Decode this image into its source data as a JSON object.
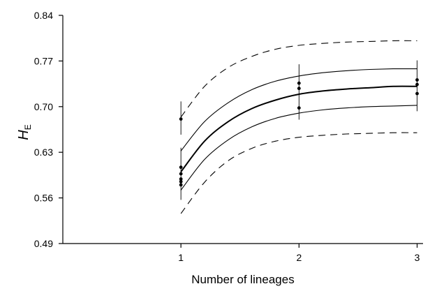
{
  "chart_data": {
    "type": "scatter",
    "title": "",
    "xlabel": "Number of lineages",
    "ylabel_main": "H",
    "ylabel_sub": "E",
    "xlim": [
      0,
      3.05
    ],
    "ylim": [
      0.49,
      0.84
    ],
    "x_ticks": [
      1,
      2,
      3
    ],
    "x_tick_labels": [
      "1",
      "2",
      "3"
    ],
    "y_ticks": [
      0.49,
      0.56,
      0.63,
      0.7,
      0.77,
      0.84
    ],
    "y_tick_labels": [
      "0.49",
      "0.56",
      "0.63",
      "0.70",
      "0.77",
      "0.84"
    ],
    "grid": false,
    "legend": "none",
    "points": [
      {
        "x": 1,
        "y": 0.681
      },
      {
        "x": 1,
        "y": 0.607
      },
      {
        "x": 1,
        "y": 0.597
      },
      {
        "x": 1,
        "y": 0.589
      },
      {
        "x": 1,
        "y": 0.585
      },
      {
        "x": 1,
        "y": 0.58
      },
      {
        "x": 2,
        "y": 0.736
      },
      {
        "x": 2,
        "y": 0.728
      },
      {
        "x": 2,
        "y": 0.698
      },
      {
        "x": 3,
        "y": 0.741
      },
      {
        "x": 3,
        "y": 0.734
      },
      {
        "x": 3,
        "y": 0.72
      }
    ],
    "error_bars": [
      {
        "x": 1,
        "low": 0.657,
        "high": 0.708
      },
      {
        "x": 1,
        "low": 0.557,
        "high": 0.637
      },
      {
        "x": 2,
        "low": 0.68,
        "high": 0.765
      },
      {
        "x": 3,
        "low": 0.693,
        "high": 0.771
      }
    ],
    "series": [
      {
        "style": "solid-thick",
        "x": [
          1.0,
          1.2,
          1.4,
          1.6,
          1.8,
          2.0,
          2.2,
          2.4,
          2.6,
          2.8,
          3.0
        ],
        "y": [
          0.6,
          0.647,
          0.677,
          0.697,
          0.71,
          0.719,
          0.724,
          0.727,
          0.729,
          0.731,
          0.731
        ]
      },
      {
        "style": "solid",
        "x": [
          1.0,
          1.2,
          1.4,
          1.6,
          1.8,
          2.0,
          2.2,
          2.4,
          2.6,
          2.8,
          3.0
        ],
        "y": [
          0.632,
          0.677,
          0.706,
          0.726,
          0.739,
          0.747,
          0.752,
          0.755,
          0.757,
          0.758,
          0.758
        ]
      },
      {
        "style": "solid",
        "x": [
          1.0,
          1.2,
          1.4,
          1.6,
          1.8,
          2.0,
          2.2,
          2.4,
          2.6,
          2.8,
          3.0
        ],
        "y": [
          0.572,
          0.619,
          0.649,
          0.669,
          0.682,
          0.69,
          0.695,
          0.698,
          0.7,
          0.701,
          0.702
        ]
      },
      {
        "style": "dashed",
        "x": [
          1.0,
          1.2,
          1.4,
          1.6,
          1.8,
          2.0,
          2.2,
          2.4,
          2.6,
          2.8,
          3.0
        ],
        "y": [
          0.684,
          0.731,
          0.76,
          0.777,
          0.788,
          0.794,
          0.797,
          0.799,
          0.8,
          0.801,
          0.801
        ]
      },
      {
        "style": "dashed",
        "x": [
          1.0,
          1.2,
          1.4,
          1.6,
          1.8,
          2.0,
          2.2,
          2.4,
          2.6,
          2.8,
          3.0
        ],
        "y": [
          0.536,
          0.584,
          0.617,
          0.636,
          0.647,
          0.653,
          0.656,
          0.658,
          0.659,
          0.66,
          0.66
        ]
      }
    ]
  }
}
